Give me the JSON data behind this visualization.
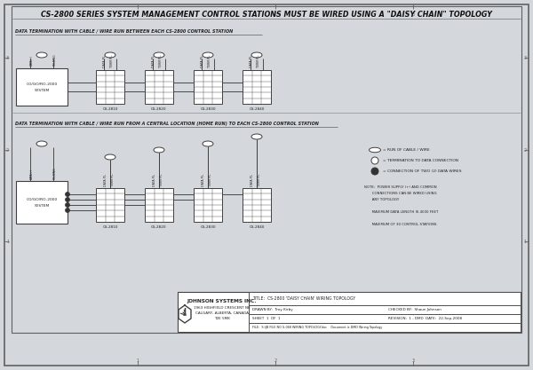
{
  "title": "CS-2800 SERIES SYSTEM MANAGEMENT CONTROL STATIONS MUST BE WIRED USING A \"DAISY CHAIN\" TOPOLOGY",
  "bg_color": "#d4d8dc",
  "inner_bg": "#e8eaec",
  "section1_label": "DATA TERMINATION WITH CABLE / WIRE RUN BETWEEN EACH CS-2800 CONTROL STATION",
  "section2_label": "DATA TERMINATION WITH CABLE / WIRE RUN FROM A CENTRAL LOCATION (HOME RUN) TO EACH CS-2800 CONTROL STATION",
  "legend_items": [
    "= RUN OF CABLE / WIRE",
    "= TERMINATION TO DATA CONNECTION",
    "= CONNECTION OF TWO (2) DATA WIRES"
  ],
  "note_lines": [
    "NOTE:  POWER SUPPLY (+) AND COMMON",
    "       CONNECTIONS CAN BE WIRED USING",
    "       ANY TOPOLOGY",
    "",
    "       MAXIMUM DATA LENGTH IS 4000 FEET",
    "",
    "       MAXIMUM OF 30 CONTROL STATIONS"
  ],
  "title_block": {
    "company": "JOHNSON SYSTEMS INC.",
    "address1": "1963 HIGHFIELD CRESCENT NE",
    "address2": "CALGARY, ALBERTA, CANADA",
    "address3": "T2E 5M8",
    "title_text": "CS-2800 'DAISY CHAIN' WIRING TOPOLOGY",
    "drawn_by": "Troy Kirby",
    "checked_by": "Shaun Johnson",
    "sheet": "1",
    "of": "1",
    "revision": "1 - DMD",
    "date": "22-Sep-2008",
    "file_text": "S:\\JB FILE NO S-068 WIRING TOPOLOGY.doc    Document is DMD Wiring Topology"
  },
  "lc": "#404040",
  "tc": "#222222"
}
